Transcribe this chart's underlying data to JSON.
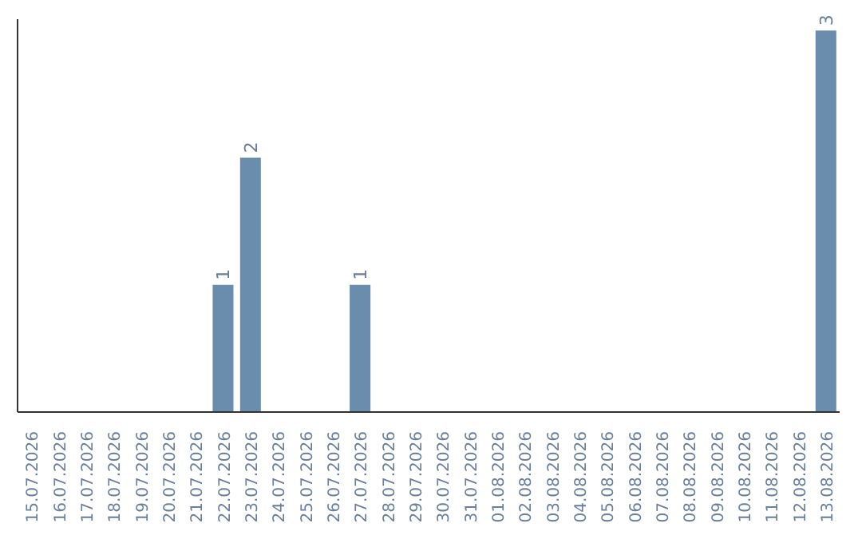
{
  "chart_data": {
    "type": "bar",
    "categories": [
      "15.07.2026",
      "16.07.2026",
      "17.07.2026",
      "18.07.2026",
      "19.07.2026",
      "20.07.2026",
      "21.07.2026",
      "22.07.2026",
      "23.07.2026",
      "24.07.2026",
      "25.07.2026",
      "26.07.2026",
      "27.07.2026",
      "28.07.2026",
      "29.07.2026",
      "30.07.2026",
      "31.07.2026",
      "01.08.2026",
      "02.08.2026",
      "03.08.2026",
      "04.08.2026",
      "05.08.2026",
      "06.08.2026",
      "07.08.2026",
      "08.08.2026",
      "09.08.2026",
      "10.08.2026",
      "11.08.2026",
      "12.08.2026",
      "13.08.2026"
    ],
    "values": [
      0,
      0,
      0,
      0,
      0,
      0,
      0,
      1,
      2,
      0,
      0,
      0,
      1,
      0,
      0,
      0,
      0,
      0,
      0,
      0,
      0,
      0,
      0,
      0,
      0,
      0,
      0,
      0,
      0,
      3
    ],
    "value_labels": [
      null,
      null,
      null,
      null,
      null,
      null,
      null,
      "1",
      "2",
      null,
      null,
      null,
      "1",
      null,
      null,
      null,
      null,
      null,
      null,
      null,
      null,
      null,
      null,
      null,
      null,
      null,
      null,
      null,
      null,
      "3"
    ],
    "color": "#6a8cad",
    "tick_labels": "x",
    "grid": false
  }
}
